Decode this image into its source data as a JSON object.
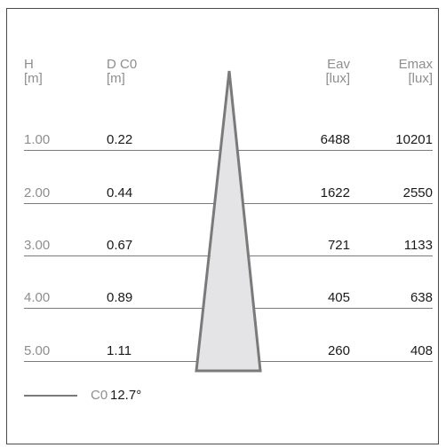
{
  "headers": {
    "h": "H",
    "h_unit": "[m]",
    "d": "D C0",
    "d_unit": "[m]",
    "eav": "Eav",
    "eav_unit": "[lux]",
    "emax": "Emax",
    "emax_unit": "[lux]"
  },
  "rows": [
    {
      "h": "1.00",
      "d": "0.22",
      "eav": "6488",
      "emax": "10201"
    },
    {
      "h": "2.00",
      "d": "0.44",
      "eav": "1622",
      "emax": "2550"
    },
    {
      "h": "3.00",
      "d": "0.67",
      "eav": "721",
      "emax": "1133"
    },
    {
      "h": "4.00",
      "d": "0.89",
      "eav": "405",
      "emax": "638"
    },
    {
      "h": "5.00",
      "d": "1.11",
      "eav": "260",
      "emax": "408"
    }
  ],
  "legend": {
    "plane": "C0",
    "angle": "12.7°"
  },
  "colors": {
    "beam_fill": "#e4e4e6",
    "beam_stroke": "#7a7a7a",
    "text_gray": "#8e8e8e",
    "text_dark": "#1a1a1a"
  }
}
